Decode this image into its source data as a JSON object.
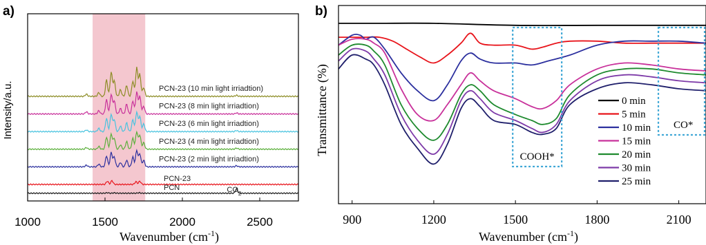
{
  "chart_data": [
    {
      "panel": "a)",
      "type": "line",
      "xlabel": "Wavenumber (cm",
      "xlabel_sup": "-1",
      "xlabel_close": ")",
      "ylabel": "Intensity/a.u.",
      "xlim": [
        1000,
        2750
      ],
      "xticks": [
        1000,
        1500,
        2000,
        2500
      ],
      "highlight_band": {
        "from": 1420,
        "to": 1760,
        "color": "#f4c7cf"
      },
      "annotation": {
        "text": "CO",
        "sub": "2",
        "x": 2350
      },
      "series": [
        {
          "name": "PCN",
          "color": "#1a1a1a",
          "offset": 0.2,
          "peaks": [
            [
              1515,
              0.05
            ],
            [
              1560,
              0.04
            ],
            [
              1720,
              0.05
            ],
            [
              2350,
              0.4
            ]
          ]
        },
        {
          "name": "PCN-23",
          "color": "#e8141b",
          "offset": 1.0,
          "peaks": [
            [
              1515,
              0.3
            ],
            [
              1545,
              0.35
            ],
            [
              1700,
              0.25
            ],
            [
              1725,
              0.3
            ]
          ]
        },
        {
          "name": "PCN-23 (2 min light irriadtion)",
          "color": "#2b2f9e",
          "offset": 2.6,
          "peaks": [
            [
              1380,
              0.15
            ],
            [
              1460,
              0.25
            ],
            [
              1510,
              1.0
            ],
            [
              1540,
              1.3
            ],
            [
              1560,
              0.9
            ],
            [
              1600,
              0.4
            ],
            [
              1640,
              0.6
            ],
            [
              1680,
              0.9
            ],
            [
              1705,
              1.5
            ],
            [
              1725,
              1.2
            ],
            [
              1750,
              0.6
            ],
            [
              2350,
              0.1
            ]
          ]
        },
        {
          "name": "PCN-23 (4 min light irriadtion)",
          "color": "#5aaf3a",
          "offset": 4.2,
          "peaks": [
            [
              1380,
              0.15
            ],
            [
              1460,
              0.25
            ],
            [
              1510,
              1.1
            ],
            [
              1540,
              1.4
            ],
            [
              1560,
              1.0
            ],
            [
              1600,
              0.4
            ],
            [
              1640,
              0.7
            ],
            [
              1680,
              1.0
            ],
            [
              1705,
              1.6
            ],
            [
              1725,
              1.3
            ],
            [
              1750,
              0.6
            ],
            [
              2350,
              0.1
            ]
          ]
        },
        {
          "name": "PCN-23 (6 min light irriadtion)",
          "color": "#48c3df",
          "offset": 5.8,
          "peaks": [
            [
              1380,
              0.15
            ],
            [
              1460,
              0.3
            ],
            [
              1510,
              1.2
            ],
            [
              1540,
              1.6
            ],
            [
              1560,
              1.1
            ],
            [
              1600,
              0.5
            ],
            [
              1640,
              0.8
            ],
            [
              1680,
              1.1
            ],
            [
              1705,
              1.8
            ],
            [
              1725,
              1.4
            ],
            [
              1750,
              0.7
            ],
            [
              2350,
              0.1
            ]
          ]
        },
        {
          "name": "PCN-23 (8 min light irriadtion)",
          "color": "#c8309a",
          "offset": 7.4,
          "peaks": [
            [
              1380,
              0.2
            ],
            [
              1460,
              0.3
            ],
            [
              1510,
              1.3
            ],
            [
              1540,
              1.8
            ],
            [
              1560,
              1.2
            ],
            [
              1600,
              0.5
            ],
            [
              1640,
              0.9
            ],
            [
              1680,
              1.2
            ],
            [
              1705,
              2.0
            ],
            [
              1725,
              1.6
            ],
            [
              1750,
              0.7
            ],
            [
              2350,
              0.1
            ]
          ]
        },
        {
          "name": "PCN-23 (10 min light irriadtion)",
          "color": "#8c8c24",
          "offset": 9.0,
          "peaks": [
            [
              1380,
              0.2
            ],
            [
              1460,
              0.35
            ],
            [
              1510,
              1.5
            ],
            [
              1540,
              2.2
            ],
            [
              1560,
              1.4
            ],
            [
              1600,
              0.6
            ],
            [
              1640,
              1.0
            ],
            [
              1680,
              1.4
            ],
            [
              1705,
              2.6
            ],
            [
              1725,
              2.0
            ],
            [
              1750,
              0.8
            ],
            [
              2350,
              0.1
            ]
          ]
        }
      ]
    },
    {
      "panel": "b)",
      "type": "line",
      "xlabel": "Wavenumber (cm",
      "xlabel_sup": "-1",
      "xlabel_close": ")",
      "ylabel": "Transmittance (%)",
      "xlim": [
        850,
        2200
      ],
      "ylim": [
        0,
        100
      ],
      "xticks": [
        900,
        1200,
        1500,
        1800,
        2100
      ],
      "boxes": [
        {
          "label": "COOH*",
          "from": 1490,
          "to": 1670
        },
        {
          "label": "CO*",
          "from": 2025,
          "to": 2210
        }
      ],
      "legend_position": "right",
      "series": [
        {
          "name": "0 min",
          "color": "#000000",
          "points": [
            [
              850,
              91
            ],
            [
              1000,
              91
            ],
            [
              1200,
              91
            ],
            [
              1500,
              90
            ],
            [
              1800,
              90
            ],
            [
              2200,
              90
            ]
          ]
        },
        {
          "name": "5 min",
          "color": "#e8141b",
          "points": [
            [
              850,
              84
            ],
            [
              900,
              84
            ],
            [
              950,
              84
            ],
            [
              1000,
              84
            ],
            [
              1050,
              82
            ],
            [
              1100,
              78
            ],
            [
              1150,
              74
            ],
            [
              1200,
              71
            ],
            [
              1250,
              75
            ],
            [
              1300,
              81
            ],
            [
              1335,
              86
            ],
            [
              1370,
              81
            ],
            [
              1420,
              80
            ],
            [
              1500,
              80
            ],
            [
              1560,
              78
            ],
            [
              1600,
              79
            ],
            [
              1650,
              81
            ],
            [
              1700,
              82
            ],
            [
              1800,
              82
            ],
            [
              1900,
              81
            ],
            [
              2000,
              81
            ],
            [
              2100,
              81
            ],
            [
              2200,
              81
            ]
          ]
        },
        {
          "name": "10 min",
          "color": "#2b2f9e",
          "points": [
            [
              850,
              80
            ],
            [
              900,
              85
            ],
            [
              930,
              85
            ],
            [
              950,
              83
            ],
            [
              980,
              84
            ],
            [
              1020,
              78
            ],
            [
              1080,
              66
            ],
            [
              1140,
              57
            ],
            [
              1200,
              52
            ],
            [
              1250,
              60
            ],
            [
              1300,
              72
            ],
            [
              1335,
              76
            ],
            [
              1370,
              73
            ],
            [
              1420,
              71
            ],
            [
              1500,
              71
            ],
            [
              1560,
              70
            ],
            [
              1620,
              72
            ],
            [
              1700,
              75
            ],
            [
              1800,
              80
            ],
            [
              1900,
              82
            ],
            [
              2000,
              82
            ],
            [
              2100,
              82
            ],
            [
              2200,
              81
            ]
          ]
        },
        {
          "name": "15 min",
          "color": "#c8309a",
          "points": [
            [
              850,
              80
            ],
            [
              900,
              83
            ],
            [
              950,
              83
            ],
            [
              980,
              81
            ],
            [
              1020,
              76
            ],
            [
              1080,
              58
            ],
            [
              1140,
              45
            ],
            [
              1200,
              42
            ],
            [
              1250,
              50
            ],
            [
              1300,
              60
            ],
            [
              1335,
              66
            ],
            [
              1370,
              62
            ],
            [
              1420,
              57
            ],
            [
              1500,
              53
            ],
            [
              1560,
              49
            ],
            [
              1600,
              48
            ],
            [
              1650,
              52
            ],
            [
              1700,
              60
            ],
            [
              1800,
              68
            ],
            [
              1900,
              71
            ],
            [
              2000,
              70
            ],
            [
              2100,
              68
            ],
            [
              2200,
              67
            ]
          ]
        },
        {
          "name": "20 min",
          "color": "#1e8a2e",
          "points": [
            [
              850,
              75
            ],
            [
              900,
              80
            ],
            [
              950,
              80
            ],
            [
              980,
              77
            ],
            [
              1020,
              70
            ],
            [
              1080,
              50
            ],
            [
              1140,
              38
            ],
            [
              1200,
              32
            ],
            [
              1250,
              40
            ],
            [
              1300,
              55
            ],
            [
              1335,
              60
            ],
            [
              1370,
              57
            ],
            [
              1420,
              50
            ],
            [
              1500,
              45
            ],
            [
              1560,
              42
            ],
            [
              1600,
              40
            ],
            [
              1650,
              43
            ],
            [
              1700,
              55
            ],
            [
              1800,
              65
            ],
            [
              1900,
              68
            ],
            [
              2000,
              68
            ],
            [
              2100,
              66
            ],
            [
              2200,
              65
            ]
          ]
        },
        {
          "name": "30 min",
          "color": "#7d3aa8",
          "points": [
            [
              850,
              72
            ],
            [
              900,
              78
            ],
            [
              950,
              77
            ],
            [
              980,
              73
            ],
            [
              1020,
              65
            ],
            [
              1080,
              45
            ],
            [
              1140,
              32
            ],
            [
              1200,
              25
            ],
            [
              1250,
              35
            ],
            [
              1300,
              52
            ],
            [
              1335,
              57
            ],
            [
              1370,
              53
            ],
            [
              1420,
              46
            ],
            [
              1500,
              42
            ],
            [
              1560,
              38
            ],
            [
              1600,
              36
            ],
            [
              1650,
              40
            ],
            [
              1700,
              52
            ],
            [
              1800,
              62
            ],
            [
              1900,
              65
            ],
            [
              2000,
              64
            ],
            [
              2100,
              62
            ],
            [
              2200,
              61
            ]
          ]
        },
        {
          "name": "25 min",
          "color": "#1f1f6b",
          "points": [
            [
              850,
              68
            ],
            [
              900,
              75
            ],
            [
              950,
              73
            ],
            [
              980,
              70
            ],
            [
              1020,
              60
            ],
            [
              1080,
              40
            ],
            [
              1140,
              28
            ],
            [
              1200,
              20
            ],
            [
              1250,
              30
            ],
            [
              1300,
              48
            ],
            [
              1335,
              53
            ],
            [
              1370,
              49
            ],
            [
              1420,
              42
            ],
            [
              1500,
              40
            ],
            [
              1560,
              36
            ],
            [
              1600,
              35
            ],
            [
              1650,
              38
            ],
            [
              1700,
              50
            ],
            [
              1800,
              58
            ],
            [
              1900,
              61
            ],
            [
              2000,
              60
            ],
            [
              2100,
              58
            ],
            [
              2200,
              57
            ]
          ]
        }
      ]
    }
  ]
}
